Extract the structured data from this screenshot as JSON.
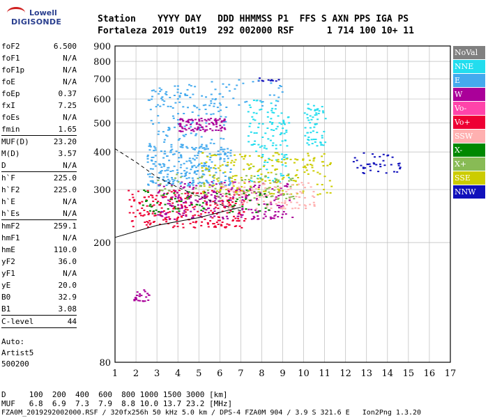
{
  "logo": {
    "line1": "Lowell",
    "line2": "DIGISONDE"
  },
  "header": {
    "line1": "Station    YYYY DAY   DDD HHMMSS P1  FFS S AXN PPS IGA PS",
    "line2": "Fortaleza 2019 Out19  292 002000 RSF      1 714 100 10+ 11"
  },
  "params": [
    {
      "k": "foF2",
      "v": "6.500"
    },
    {
      "k": "foF1",
      "v": "N/A"
    },
    {
      "k": "foF1p",
      "v": "N/A"
    },
    {
      "k": "foE",
      "v": "N/A"
    },
    {
      "k": "foEp",
      "v": "0.37"
    },
    {
      "k": "fxI",
      "v": "7.25"
    },
    {
      "k": "foEs",
      "v": "N/A"
    },
    {
      "k": "fmin",
      "v": "1.65"
    },
    {
      "sep": true
    },
    {
      "k": "MUF(D)",
      "v": "23.20"
    },
    {
      "k": "M(D)",
      "v": "3.57"
    },
    {
      "k": "D",
      "v": "N/A"
    },
    {
      "sep": true
    },
    {
      "k": "h`F",
      "v": "225.0"
    },
    {
      "k": "h`F2",
      "v": "225.0"
    },
    {
      "k": "h`E",
      "v": "N/A"
    },
    {
      "k": "h`Es",
      "v": "N/A"
    },
    {
      "sep": true
    },
    {
      "k": "hmF2",
      "v": "259.1"
    },
    {
      "k": "hmF1",
      "v": "N/A"
    },
    {
      "k": "hmE",
      "v": "110.0"
    },
    {
      "k": "yF2",
      "v": "36.0"
    },
    {
      "k": "yF1",
      "v": "N/A"
    },
    {
      "k": "yE",
      "v": "20.0"
    },
    {
      "k": "B0",
      "v": "32.9"
    },
    {
      "k": "B1",
      "v": "3.08"
    },
    {
      "sep": true
    },
    {
      "k": "C-level",
      "v": "44"
    },
    {
      "sep": true
    }
  ],
  "notes": {
    "auto": "Auto:",
    "artist": "Artist5",
    "code": "500200"
  },
  "legend": [
    {
      "label": "NoVal",
      "color": "#808080"
    },
    {
      "label": "NNE",
      "color": "#22ddee"
    },
    {
      "label": "E",
      "color": "#44aaee"
    },
    {
      "label": "W",
      "color": "#aa0099"
    },
    {
      "label": "Vo-",
      "color": "#ff44aa"
    },
    {
      "label": "Vo+",
      "color": "#ee0033"
    },
    {
      "label": "SSW",
      "color": "#ffb0b0"
    },
    {
      "label": "X-",
      "color": "#008800"
    },
    {
      "label": "X+",
      "color": "#88bb55"
    },
    {
      "label": "SSE",
      "color": "#cccc00"
    },
    {
      "label": "NNW",
      "color": "#1010bb"
    }
  ],
  "footer": {
    "line1": "D     100  200  400  600  800 1000 1500 3000 [km]",
    "line2": "MUF   6.8  6.9  7.3  7.9  8.8 10.0 13.7 23.2 [MHz]",
    "line3": "FZA0M_2019292002000.RSF / 320fx256h 50 kHz 5.0 km / DPS-4 FZA0M 904 / 3.9 S 321.6 E   Ion2Png 1.3.20"
  },
  "chart_data": {
    "type": "scatter",
    "title": "",
    "xlabel": "",
    "ylabel": "",
    "xlim": [
      1,
      17
    ],
    "ylim": [
      80,
      900
    ],
    "x_ticks": [
      1,
      2,
      3,
      4,
      5,
      6,
      7,
      8,
      9,
      10,
      11,
      12,
      13,
      14,
      15,
      16,
      17
    ],
    "y_ticks": [
      80,
      200,
      300,
      400,
      500,
      600,
      700,
      800,
      900
    ],
    "y_scale": "log",
    "grid": true,
    "legend_position": "right",
    "clusters": [
      {
        "series": "Vo+",
        "x": [
          1.6,
          7.2
        ],
        "y": [
          225,
          300
        ],
        "n": 260
      },
      {
        "series": "W",
        "x": [
          3.0,
          9.5
        ],
        "y": [
          240,
          320
        ],
        "n": 240
      },
      {
        "series": "E",
        "x": [
          2.5,
          6.5
        ],
        "y": [
          310,
          420
        ],
        "n": 260
      },
      {
        "series": "E",
        "x": [
          2.5,
          6.3
        ],
        "y": [
          420,
          650
        ],
        "n": 120
      },
      {
        "series": "NNE",
        "x": [
          7.3,
          9.3
        ],
        "y": [
          320,
          600
        ],
        "n": 120
      },
      {
        "series": "W",
        "x": [
          4.0,
          6.2
        ],
        "y": [
          470,
          520
        ],
        "n": 90
      },
      {
        "series": "SSE",
        "x": [
          5.0,
          11.3
        ],
        "y": [
          290,
          400
        ],
        "n": 200
      },
      {
        "series": "SSW",
        "x": [
          6.0,
          10.5
        ],
        "y": [
          260,
          320
        ],
        "n": 120
      },
      {
        "series": "X-",
        "x": [
          2.0,
          8.5
        ],
        "y": [
          250,
          300
        ],
        "n": 70
      },
      {
        "series": "X+",
        "x": [
          3.0,
          9.5
        ],
        "y": [
          280,
          340
        ],
        "n": 80
      },
      {
        "series": "NNE",
        "x": [
          10.0,
          11.0
        ],
        "y": [
          420,
          580
        ],
        "n": 60
      },
      {
        "series": "NNW",
        "x": [
          12.3,
          14.6
        ],
        "y": [
          340,
          400
        ],
        "n": 40
      },
      {
        "series": "W",
        "x": [
          1.8,
          2.6
        ],
        "y": [
          128,
          140
        ],
        "n": 25
      },
      {
        "series": "NNW",
        "x": [
          7.8,
          8.8
        ],
        "y": [
          690,
          710
        ],
        "n": 10
      },
      {
        "series": "E",
        "x": [
          3.0,
          9.0
        ],
        "y": [
          560,
          700
        ],
        "n": 50
      }
    ],
    "trace_lines": [
      {
        "style": "dashed",
        "x": [
          1.0,
          2.0,
          3.0,
          4.0,
          5.0,
          6.0,
          7.0
        ],
        "y": [
          410,
          370,
          330,
          305,
          285,
          268,
          255
        ]
      },
      {
        "style": "solid",
        "x": [
          1.0,
          2.0,
          3.0,
          4.0,
          5.0,
          6.0,
          7.0
        ],
        "y": [
          208,
          218,
          228,
          235,
          242,
          252,
          262
        ]
      }
    ]
  }
}
